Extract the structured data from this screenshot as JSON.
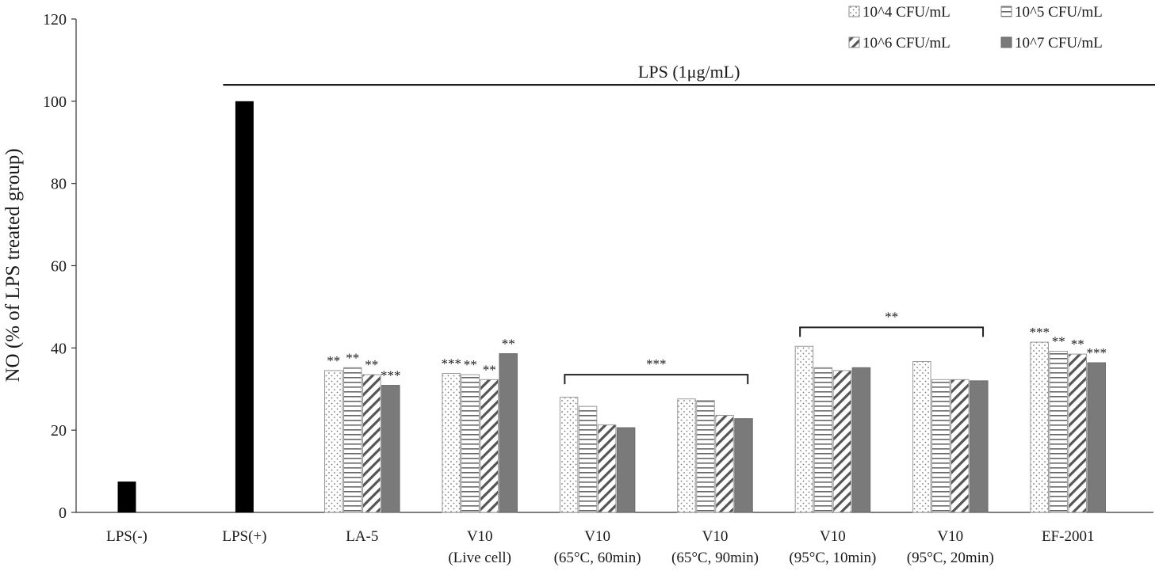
{
  "chart_data": {
    "type": "bar",
    "ylabel": "NO (% of LPS treated group)",
    "ylim": [
      0,
      120
    ],
    "yticks": [
      0,
      20,
      40,
      60,
      80,
      100,
      120
    ],
    "grid": false,
    "legend_position": "top-right",
    "categories": [
      [
        "LPS(-)"
      ],
      [
        "LPS(+)"
      ],
      [
        "LA-5"
      ],
      [
        "V10",
        "(Live cell)"
      ],
      [
        "V10",
        "(65°C, 60min)"
      ],
      [
        "V10",
        "(65°C, 90min)"
      ],
      [
        "V10",
        "(95°C, 10min)"
      ],
      [
        "V10",
        "(95°C, 20min)"
      ],
      [
        "EF-2001"
      ]
    ],
    "controls": [
      {
        "category_index": 0,
        "value": 7.5,
        "color": "#000000"
      },
      {
        "category_index": 1,
        "value": 100,
        "color": "#000000"
      }
    ],
    "series": [
      {
        "name": "10^4 CFU/mL",
        "pattern": "dots",
        "values": [
          null,
          null,
          34.5,
          33.8,
          28.0,
          27.6,
          40.4,
          36.7,
          41.4
        ]
      },
      {
        "name": "10^5 CFU/mL",
        "pattern": "horizontal-lines",
        "values": [
          null,
          null,
          35.2,
          33.5,
          25.8,
          27.2,
          35.2,
          32.3,
          39.2
        ]
      },
      {
        "name": "10^6 CFU/mL",
        "pattern": "diagonal-lines",
        "values": [
          null,
          null,
          33.5,
          32.3,
          21.3,
          23.6,
          34.5,
          32.3,
          38.5
        ]
      },
      {
        "name": "10^7 CFU/mL",
        "pattern": "solid-gray",
        "values": [
          null,
          null,
          30.9,
          38.6,
          20.6,
          22.8,
          35.2,
          32.0,
          36.4
        ]
      }
    ],
    "significance": [
      {
        "category_index": 2,
        "marks": [
          "**",
          "**",
          "**",
          "***"
        ]
      },
      {
        "category_index": 3,
        "marks": [
          "***",
          "**",
          "**",
          "**"
        ]
      },
      {
        "category_index": 8,
        "marks": [
          "***",
          "**",
          "**",
          "***"
        ]
      }
    ],
    "brackets": [
      {
        "from_category": 4,
        "to_category": 5,
        "label": "***",
        "level": 33.5
      },
      {
        "from_category": 6,
        "to_category": 7,
        "label": "**",
        "level": 45.0
      }
    ],
    "annotation": {
      "text": "LPS (1μg/mL)",
      "level": 104,
      "from_category": 1
    }
  }
}
